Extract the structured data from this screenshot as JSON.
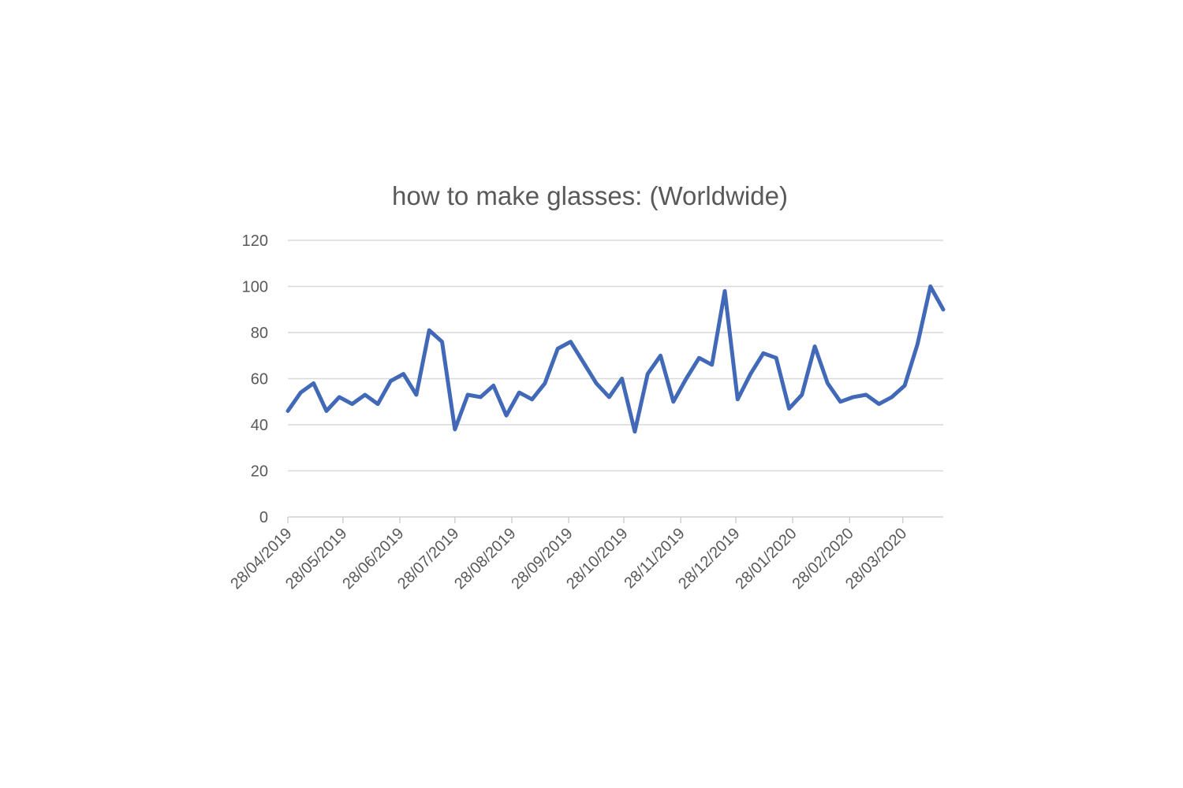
{
  "chart_data": {
    "type": "line",
    "title": "how to make glasses: (Worldwide)",
    "xlabel": "",
    "ylabel": "",
    "ylim": [
      0,
      120
    ],
    "yticks": [
      0,
      20,
      40,
      60,
      80,
      100,
      120
    ],
    "grid": true,
    "legend": "none",
    "x_start": "2019-04-28",
    "x_step_days": 7,
    "xtick_labels": [
      "28/04/2019",
      "28/05/2019",
      "28/06/2019",
      "28/07/2019",
      "28/08/2019",
      "28/09/2019",
      "28/10/2019",
      "28/11/2019",
      "28/12/2019",
      "28/01/2020",
      "28/02/2020",
      "28/03/2020"
    ],
    "xtick_dates": [
      "2019-04-28",
      "2019-05-28",
      "2019-06-28",
      "2019-07-28",
      "2019-08-28",
      "2019-09-28",
      "2019-10-28",
      "2019-11-28",
      "2019-12-28",
      "2020-01-28",
      "2020-02-28",
      "2020-03-28"
    ],
    "x_end": "2020-04-19",
    "series": [
      {
        "name": "how to make glasses: (Worldwide)",
        "color": "#4169B8",
        "values": [
          46,
          54,
          58,
          46,
          52,
          49,
          53,
          49,
          59,
          62,
          53,
          81,
          76,
          38,
          53,
          52,
          57,
          44,
          54,
          51,
          58,
          73,
          76,
          67,
          58,
          52,
          60,
          37,
          62,
          70,
          50,
          60,
          69,
          66,
          98,
          51,
          62,
          71,
          69,
          47,
          53,
          74,
          58,
          50,
          52,
          53,
          49,
          52,
          57,
          75,
          100,
          90
        ]
      }
    ]
  }
}
